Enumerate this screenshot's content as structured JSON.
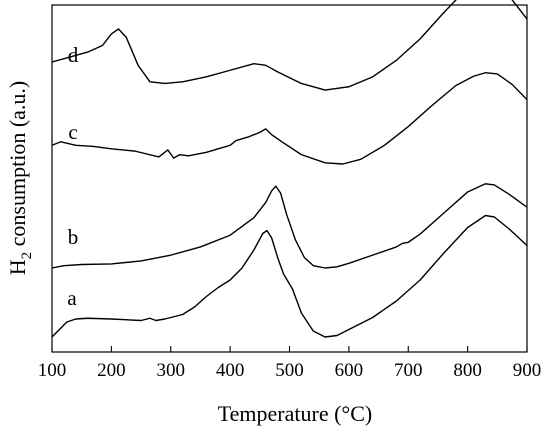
{
  "chart_data": {
    "type": "line",
    "title": "",
    "xlabel": "Temperature (°C)",
    "ylabel_main": "H",
    "ylabel_sub": "2",
    "ylabel_rest": " consumption (a.u.)",
    "xlim": [
      100,
      900
    ],
    "xticks": [
      "100",
      "200",
      "300",
      "400",
      "500",
      "600",
      "700",
      "800",
      "900"
    ],
    "yticks_shown": false,
    "grid": false,
    "series": [
      {
        "label": "a",
        "x": [
          100,
          110,
          125,
          140,
          160,
          200,
          250,
          265,
          275,
          290,
          320,
          340,
          360,
          380,
          400,
          420,
          440,
          455,
          462,
          470,
          480,
          490,
          505,
          520,
          540,
          560,
          580,
          600,
          640,
          680,
          720,
          760,
          800,
          830,
          845,
          870,
          900
        ],
        "y": [
          0.02,
          0.06,
          0.12,
          0.14,
          0.145,
          0.14,
          0.13,
          0.145,
          0.13,
          0.14,
          0.17,
          0.22,
          0.29,
          0.35,
          0.4,
          0.48,
          0.6,
          0.71,
          0.73,
          0.68,
          0.55,
          0.44,
          0.34,
          0.18,
          0.06,
          0.02,
          0.03,
          0.07,
          0.15,
          0.26,
          0.4,
          0.58,
          0.75,
          0.83,
          0.82,
          0.74,
          0.63
        ]
      },
      {
        "label": "b",
        "x": [
          100,
          120,
          150,
          200,
          250,
          300,
          350,
          400,
          440,
          460,
          470,
          477,
          485,
          495,
          510,
          525,
          540,
          560,
          580,
          600,
          640,
          680,
          690,
          700,
          720,
          760,
          800,
          830,
          845,
          870,
          900
        ],
        "y": [
          0.0,
          0.02,
          0.03,
          0.035,
          0.06,
          0.11,
          0.18,
          0.28,
          0.43,
          0.56,
          0.66,
          0.7,
          0.64,
          0.46,
          0.24,
          0.09,
          0.02,
          0.0,
          0.01,
          0.04,
          0.11,
          0.18,
          0.21,
          0.22,
          0.29,
          0.47,
          0.65,
          0.72,
          0.71,
          0.63,
          0.52
        ]
      },
      {
        "label": "c",
        "x": [
          100,
          115,
          140,
          170,
          200,
          240,
          280,
          295,
          305,
          315,
          330,
          360,
          400,
          410,
          430,
          450,
          460,
          470,
          490,
          520,
          560,
          590,
          620,
          660,
          700,
          740,
          780,
          810,
          830,
          850,
          875,
          900
        ],
        "y": [
          0.16,
          0.19,
          0.16,
          0.15,
          0.13,
          0.11,
          0.06,
          0.12,
          0.05,
          0.08,
          0.07,
          0.1,
          0.16,
          0.2,
          0.23,
          0.27,
          0.3,
          0.25,
          0.18,
          0.08,
          0.01,
          0.0,
          0.04,
          0.16,
          0.32,
          0.5,
          0.67,
          0.75,
          0.78,
          0.77,
          0.68,
          0.55
        ]
      },
      {
        "label": "d",
        "x": [
          100,
          130,
          160,
          185,
          200,
          212,
          225,
          245,
          265,
          290,
          320,
          360,
          400,
          440,
          460,
          480,
          520,
          560,
          600,
          640,
          680,
          720,
          760,
          800,
          830,
          850,
          870,
          900
        ],
        "y": [
          0.2,
          0.23,
          0.26,
          0.3,
          0.37,
          0.4,
          0.35,
          0.18,
          0.08,
          0.07,
          0.08,
          0.11,
          0.15,
          0.19,
          0.18,
          0.14,
          0.07,
          0.03,
          0.05,
          0.11,
          0.21,
          0.34,
          0.5,
          0.65,
          0.7,
          0.68,
          0.6,
          0.46
        ]
      }
    ]
  }
}
